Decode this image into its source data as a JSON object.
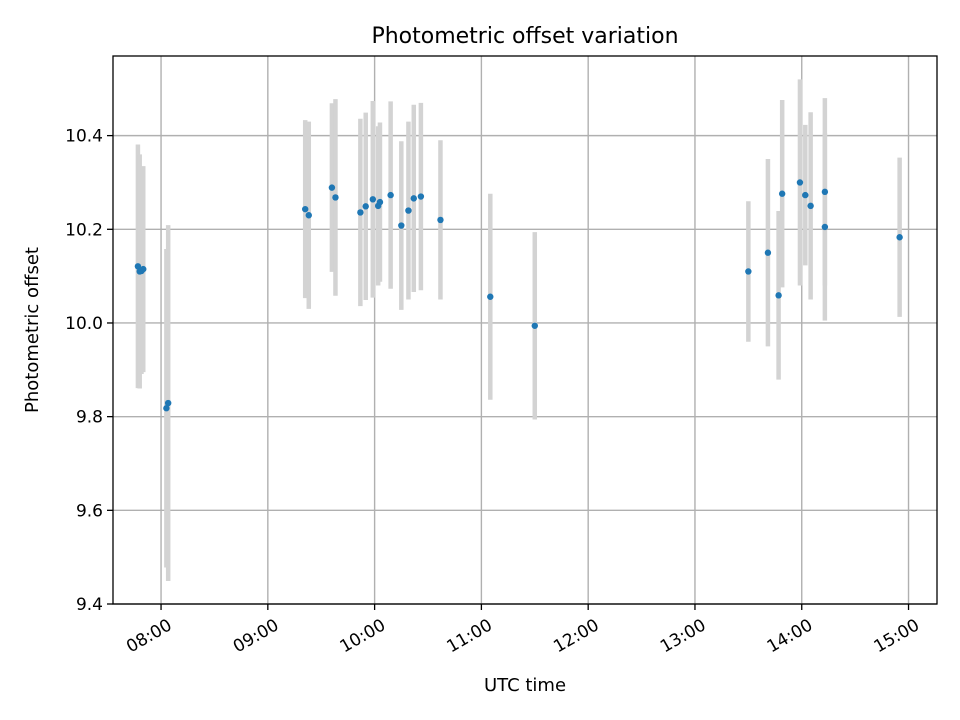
{
  "chart_data": {
    "type": "scatter",
    "title": "Photometric offset variation",
    "xlabel": "UTC time",
    "ylabel": "Photometric offset",
    "xlim": [
      "07:33",
      "15:16"
    ],
    "ylim": [
      9.4,
      10.57
    ],
    "x_ticks": [
      "08:00",
      "09:00",
      "10:00",
      "11:00",
      "12:00",
      "13:00",
      "14:00",
      "15:00"
    ],
    "y_ticks": [
      9.4,
      9.6,
      9.8,
      10.0,
      10.2,
      10.4
    ],
    "grid": true,
    "marker_color": "#1f77b4",
    "errorbar_color": "#d3d3d3",
    "series": [
      {
        "points": [
          {
            "x": "07:47",
            "y": 10.121,
            "err": 0.26
          },
          {
            "x": "07:48",
            "y": 10.11,
            "err": 0.25
          },
          {
            "x": "07:49",
            "y": 10.111,
            "err": 0.22
          },
          {
            "x": "07:50",
            "y": 10.115,
            "err": 0.22
          },
          {
            "x": "08:03",
            "y": 9.818,
            "err": 0.34
          },
          {
            "x": "08:04",
            "y": 9.829,
            "err": 0.38
          },
          {
            "x": "09:21",
            "y": 10.243,
            "err": 0.19
          },
          {
            "x": "09:23",
            "y": 10.23,
            "err": 0.2
          },
          {
            "x": "09:36",
            "y": 10.289,
            "err": 0.18
          },
          {
            "x": "09:38",
            "y": 10.268,
            "err": 0.21
          },
          {
            "x": "09:52",
            "y": 10.236,
            "err": 0.2
          },
          {
            "x": "09:55",
            "y": 10.249,
            "err": 0.2
          },
          {
            "x": "09:59",
            "y": 10.264,
            "err": 0.21
          },
          {
            "x": "10:02",
            "y": 10.25,
            "err": 0.17
          },
          {
            "x": "10:03",
            "y": 10.258,
            "err": 0.17
          },
          {
            "x": "10:09",
            "y": 10.273,
            "err": 0.2
          },
          {
            "x": "10:15",
            "y": 10.208,
            "err": 0.18
          },
          {
            "x": "10:19",
            "y": 10.24,
            "err": 0.19
          },
          {
            "x": "10:22",
            "y": 10.266,
            "err": 0.2
          },
          {
            "x": "10:26",
            "y": 10.27,
            "err": 0.2
          },
          {
            "x": "10:37",
            "y": 10.22,
            "err": 0.17
          },
          {
            "x": "11:05",
            "y": 10.056,
            "err": 0.22
          },
          {
            "x": "11:30",
            "y": 9.994,
            "err": 0.2
          },
          {
            "x": "13:30",
            "y": 10.11,
            "err": 0.15
          },
          {
            "x": "13:41",
            "y": 10.15,
            "err": 0.2
          },
          {
            "x": "13:47",
            "y": 10.059,
            "err": 0.18
          },
          {
            "x": "13:49",
            "y": 10.276,
            "err": 0.2
          },
          {
            "x": "13:59",
            "y": 10.3,
            "err": 0.22
          },
          {
            "x": "14:02",
            "y": 10.273,
            "err": 0.15
          },
          {
            "x": "14:05",
            "y": 10.25,
            "err": 0.2
          },
          {
            "x": "14:13",
            "y": 10.28,
            "err": 0.2
          },
          {
            "x": "14:13",
            "y": 10.205,
            "err": 0.2
          },
          {
            "x": "14:55",
            "y": 10.183,
            "err": 0.17
          }
        ]
      }
    ]
  }
}
